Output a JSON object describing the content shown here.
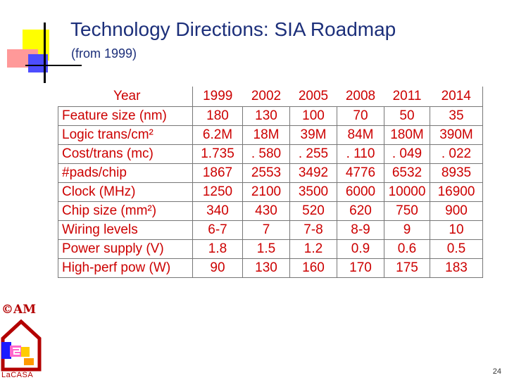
{
  "slide": {
    "title": "Technology Directions: SIA Roadmap",
    "subtitle": "(from 1999)",
    "page_number": "24"
  },
  "logo": {
    "copyright": "©AM",
    "name": "LaCASA"
  },
  "table": {
    "header": {
      "label": "Year",
      "years": [
        "1999",
        "2002",
        "2005",
        "2008",
        "2011",
        "2014"
      ]
    },
    "rows": [
      {
        "label": "Feature size (nm)",
        "values": [
          "180",
          "130",
          "100",
          "70",
          "50",
          "35"
        ]
      },
      {
        "label": "Logic trans/cm²",
        "values": [
          "6.2M",
          "18M",
          "39M",
          "84M",
          "180M",
          "390M"
        ]
      },
      {
        "label": "Cost/trans (mc)",
        "values": [
          "1.735",
          ". 580",
          ". 255",
          ". 110",
          ". 049",
          ". 022"
        ]
      },
      {
        "label": "#pads/chip",
        "values": [
          "1867",
          "2553",
          "3492",
          "4776",
          "6532",
          "8935"
        ]
      },
      {
        "label": "Clock (MHz)",
        "values": [
          "1250",
          "2100",
          "3500",
          "6000",
          "10000",
          "16900"
        ]
      },
      {
        "label": "Chip size (mm²)",
        "values": [
          "340",
          "430",
          "520",
          "620",
          "750",
          "900"
        ]
      },
      {
        "label": "Wiring levels",
        "values": [
          "6-7",
          "7",
          "7-8",
          "8-9",
          "9",
          "10"
        ]
      },
      {
        "label": "Power supply (V)",
        "values": [
          "1.8",
          "1.5",
          "1.2",
          "0.9",
          "0.6",
          "0.5"
        ]
      },
      {
        "label": "High-perf pow (W)",
        "values": [
          "90",
          "130",
          "160",
          "170",
          "175",
          "183"
        ]
      }
    ]
  }
}
